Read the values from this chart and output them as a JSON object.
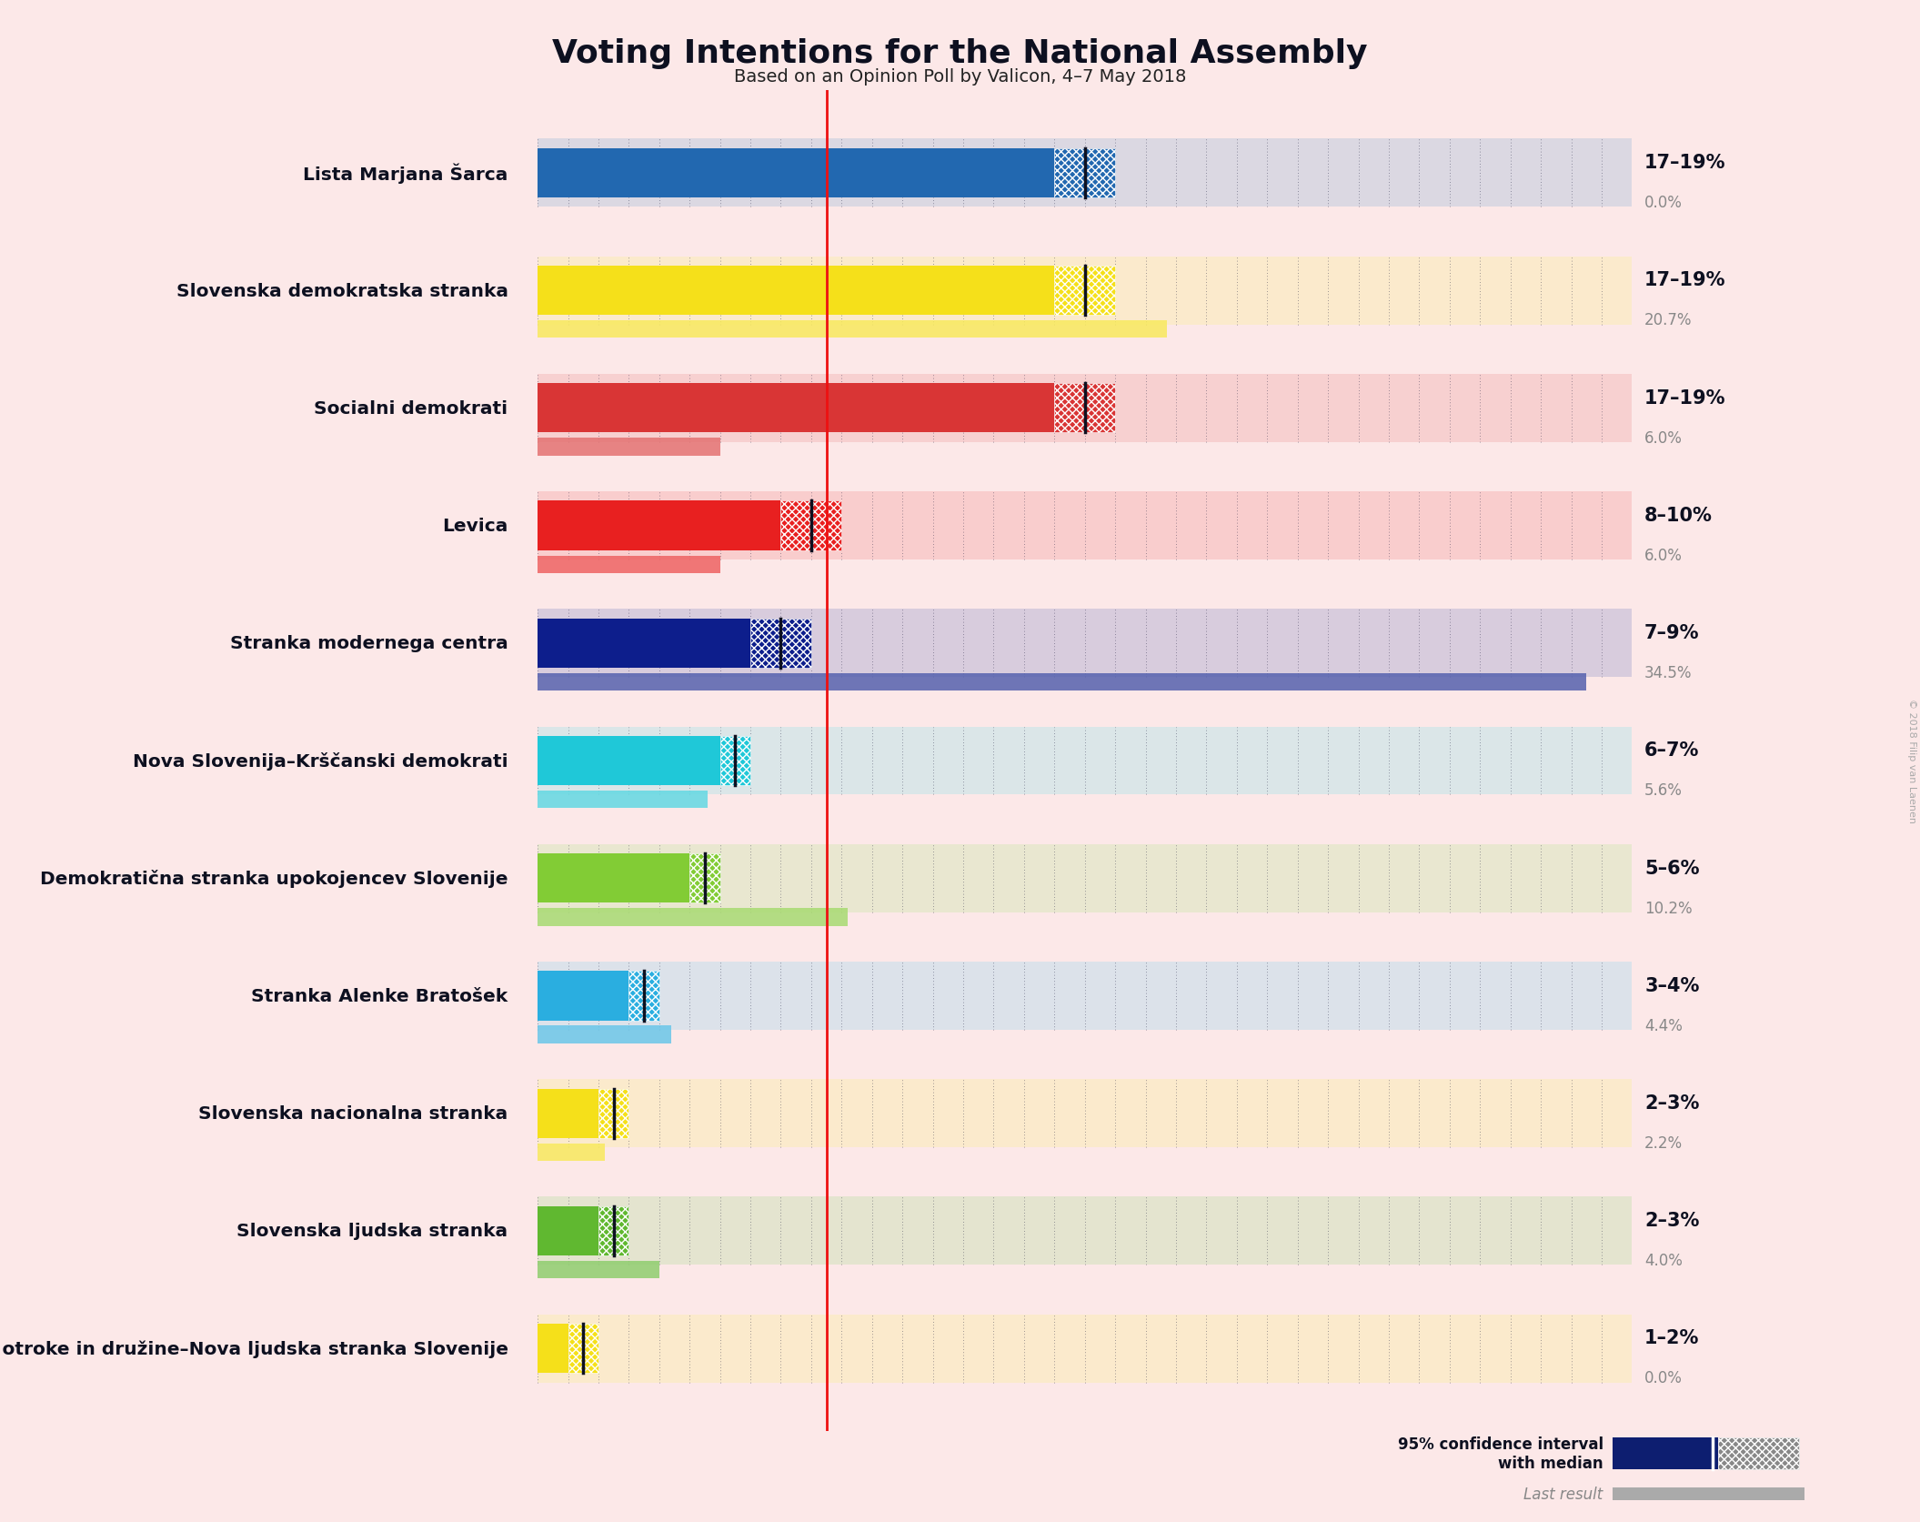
{
  "title": "Voting Intentions for the National Assembly",
  "subtitle": "Based on an Opinion Poll by Valicon, 4–7 May 2018",
  "background_color": "#fce8e8",
  "parties": [
    "Lista Marjana Šarca",
    "Slovenska demokratska stranka",
    "Socialni demokrati",
    "Levica",
    "Stranka modernega centra",
    "Nova Slovenija–Krščanski demokrati",
    "Demokratična stranka upokojencev Slovenije",
    "Stranka Alenke Bratošek",
    "Slovenska nacionalna stranka",
    "Slovenska ljudska stranka",
    "Glas za otroke in družine–Nova ljudska stranka Slovenije"
  ],
  "bar_colors": [
    "#2268b0",
    "#f5e01a",
    "#d93535",
    "#e82020",
    "#0d1e8c",
    "#1fc8d8",
    "#82cc35",
    "#2aaee0",
    "#f5e01a",
    "#60b830",
    "#f5e01a"
  ],
  "ci_low": [
    17,
    17,
    17,
    8,
    7,
    6,
    5,
    3,
    2,
    2,
    1
  ],
  "ci_high": [
    19,
    19,
    19,
    10,
    9,
    7,
    6,
    4,
    3,
    3,
    2
  ],
  "last_result": [
    0.0,
    20.7,
    6.0,
    6.0,
    34.5,
    5.6,
    10.2,
    4.4,
    2.2,
    4.0,
    0.0
  ],
  "ci_label": [
    "17–19%",
    "17–19%",
    "17–19%",
    "8–10%",
    "7–9%",
    "6–7%",
    "5–6%",
    "3–4%",
    "2–3%",
    "2–3%",
    "1–2%"
  ],
  "last_result_label": [
    "0.0%",
    "20.7%",
    "6.0%",
    "6.0%",
    "34.5%",
    "5.6%",
    "10.2%",
    "4.4%",
    "2.2%",
    "4.0%",
    "0.0%"
  ],
  "median": [
    18,
    18,
    18,
    9,
    8,
    6.5,
    5.5,
    3.5,
    2.5,
    2.5,
    1.5
  ],
  "xlim_max": 36,
  "legend_text": "95% confidence interval\nwith median",
  "last_result_text": "Last result",
  "red_line_x": 9.5,
  "copyright": "© 2018 Filip van Laenen"
}
